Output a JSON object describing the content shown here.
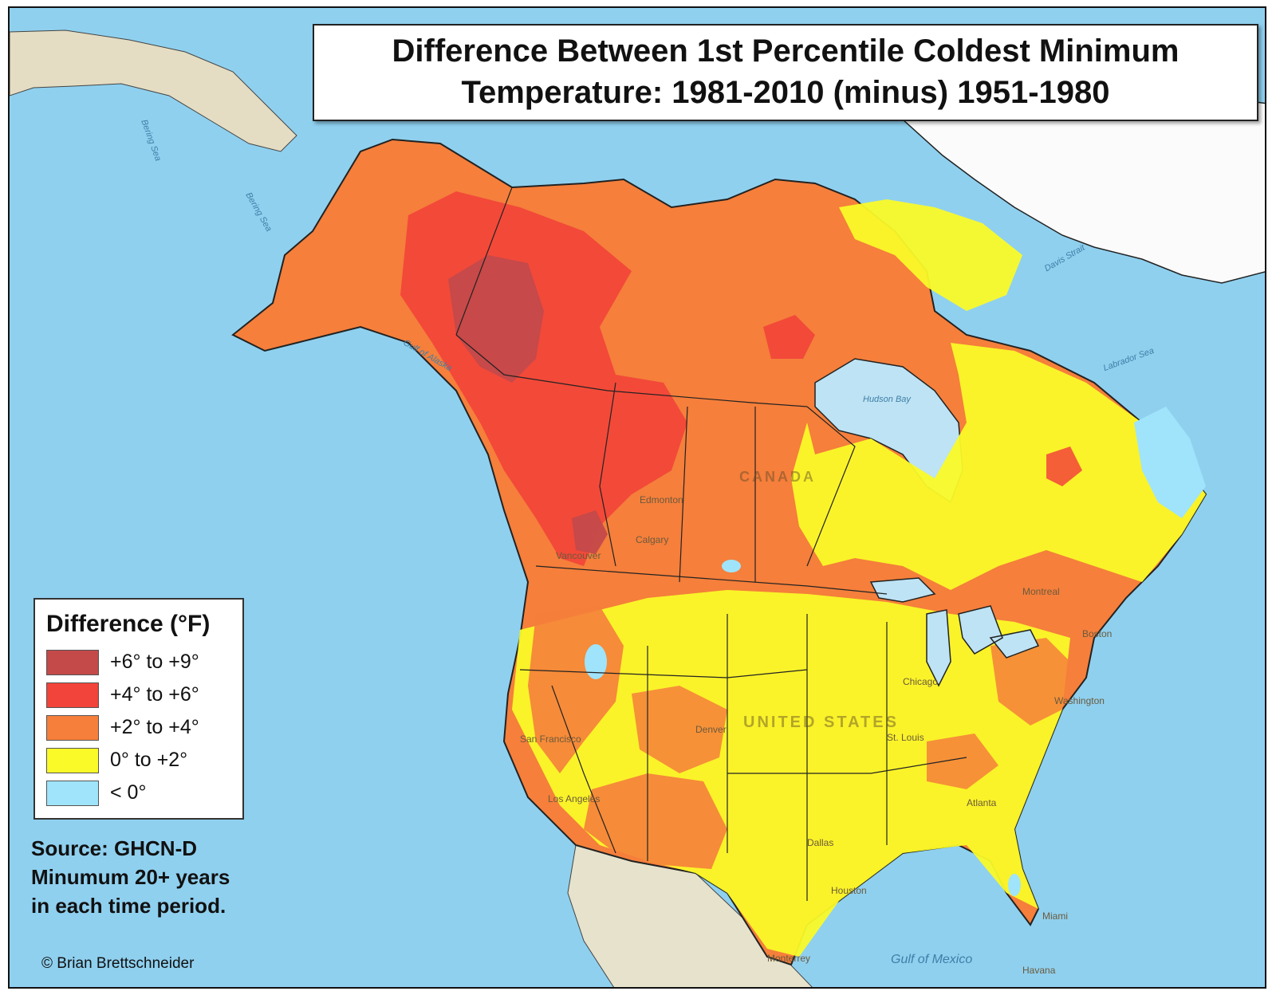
{
  "title": {
    "line1": "Difference Between 1st Percentile Coldest Minimum",
    "line2": "Temperature: 1981-2010 (minus) 1951-1980"
  },
  "legend": {
    "title": "Difference (°F)",
    "items": [
      {
        "label": "+6° to +9°",
        "color": "#c44a4a"
      },
      {
        "label": "+4° to +6°",
        "color": "#f2443a"
      },
      {
        "label": "+2° to +4°",
        "color": "#f57f3b"
      },
      {
        "label": "0° to +2°",
        "color": "#fafa28"
      },
      {
        "label": "< 0°",
        "color": "#9fe4fb"
      }
    ]
  },
  "source_note": {
    "line1": "Source: GHCN-D",
    "line2": "Minumum 20+ years",
    "line3": "in each time period."
  },
  "credit": "© Brian Brettschneider",
  "map_labels": {
    "cities": [
      "Edmonton",
      "Calgary",
      "Vancouver",
      "Denver",
      "Los Angeles",
      "Chicago",
      "Montreal",
      "Boston",
      "Washington",
      "Dallas",
      "Houston",
      "Atlanta",
      "Miami",
      "Havana",
      "Monterrey",
      "San Francisco",
      "St. Louis"
    ],
    "countries": [
      "CANADA",
      "UNITED STATES"
    ],
    "water": [
      "Bering Sea",
      "Gulf of Alaska",
      "Hudson Bay",
      "Labrador Sea",
      "Davis Strait",
      "Gulf of Mexico"
    ]
  },
  "colors": {
    "ocean": "#8fd0ef",
    "land": "#ebe6d6",
    "ice": "#fbfbfb",
    "lake": "#bde3f4"
  }
}
